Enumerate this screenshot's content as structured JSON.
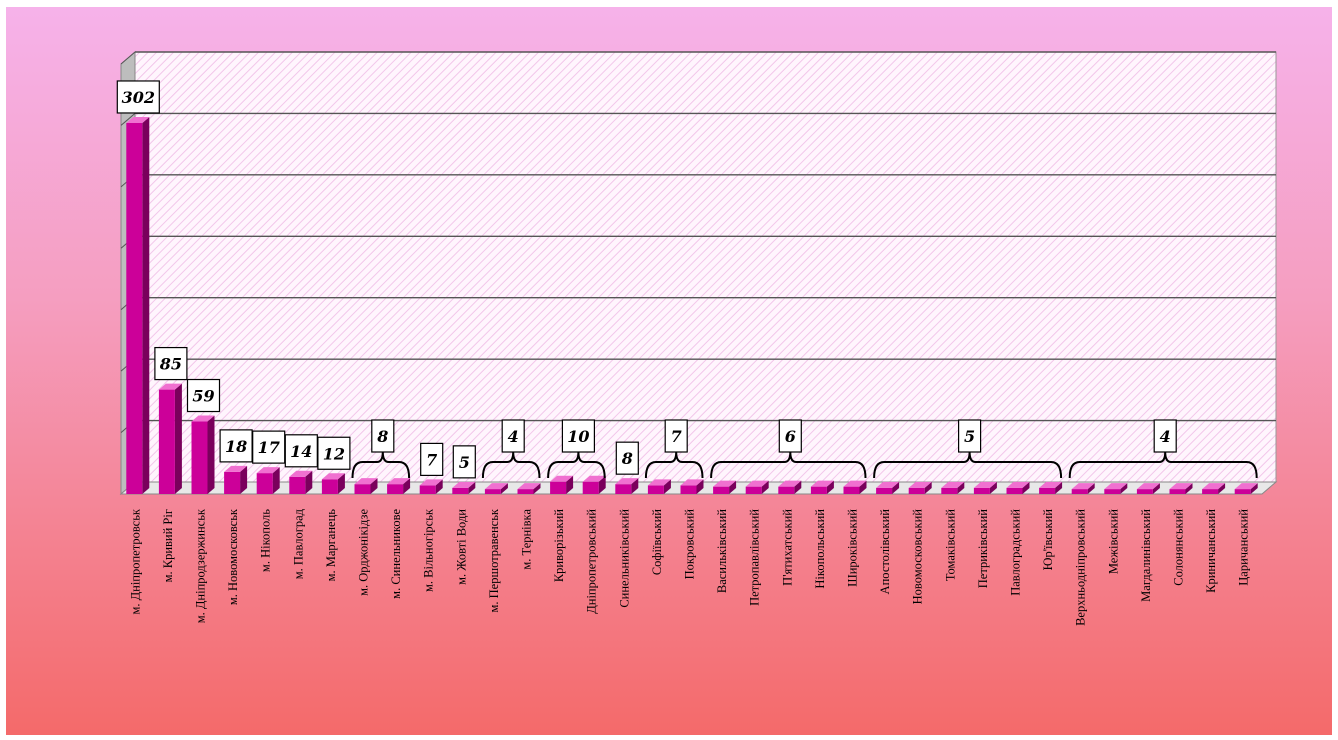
{
  "colors": {
    "bar_front": "#cc0099",
    "bar_side": "#7a005c",
    "bar_top": "#f070d0",
    "plot_fill": "#fff5fd",
    "hatch": "#f2c6ea",
    "wall_side": "#bdbdbd",
    "gridline": "#555555"
  },
  "chart_data": {
    "type": "bar",
    "style": "3d-column",
    "grid": true,
    "ylim": [
      0,
      350
    ],
    "categories": [
      "м. Дніпропетровськ",
      "м. Кривий Ріг",
      "м. Дніпродзержинськ",
      "м. Новомосковськ",
      "м. Нікополь",
      "м. Павлоград",
      "м. Марганець",
      "м. Орджонікідзе",
      "м. Синельникове",
      "м. Вільногірськ",
      "м. Жовті Води",
      "м. Першотравенськ",
      "м. Тернівка",
      "Криворізький",
      "Дніпропетровський",
      "Синельниківський",
      "Софіївський",
      "Покровський",
      "Васильківський",
      "Петропавлівський",
      "П'ятихатський",
      "Нікопольський",
      "Широківський",
      "Апостолівський",
      "Новомосковський",
      "Томаківський",
      "Петриківський",
      "Павлоградський",
      "Юр'ївський",
      "Верхньодніпровський",
      "Межівський",
      "Магдалинівський",
      "Солонянський",
      "Криничанський",
      "Царичанський"
    ],
    "values": [
      302,
      85,
      59,
      18,
      17,
      14,
      12,
      8,
      8,
      7,
      5,
      4,
      4,
      10,
      10,
      8,
      7,
      7,
      6,
      6,
      6,
      6,
      6,
      5,
      5,
      5,
      5,
      5,
      5,
      4,
      4,
      4,
      4,
      4,
      4
    ],
    "labels": [
      {
        "text": "302",
        "from": 0,
        "to": 0
      },
      {
        "text": "85",
        "from": 1,
        "to": 1
      },
      {
        "text": "59",
        "from": 2,
        "to": 2
      },
      {
        "text": "18",
        "from": 3,
        "to": 3
      },
      {
        "text": "17",
        "from": 4,
        "to": 4
      },
      {
        "text": "14",
        "from": 5,
        "to": 5
      },
      {
        "text": "12",
        "from": 6,
        "to": 6
      },
      {
        "text": "8",
        "from": 7,
        "to": 8
      },
      {
        "text": "7",
        "from": 9,
        "to": 9
      },
      {
        "text": "5",
        "from": 10,
        "to": 10
      },
      {
        "text": "4",
        "from": 11,
        "to": 12
      },
      {
        "text": "10",
        "from": 13,
        "to": 14
      },
      {
        "text": "8",
        "from": 15,
        "to": 15
      },
      {
        "text": "7",
        "from": 16,
        "to": 17
      },
      {
        "text": "6",
        "from": 18,
        "to": 22
      },
      {
        "text": "5",
        "from": 23,
        "to": 28
      },
      {
        "text": "4",
        "from": 29,
        "to": 34
      }
    ]
  }
}
